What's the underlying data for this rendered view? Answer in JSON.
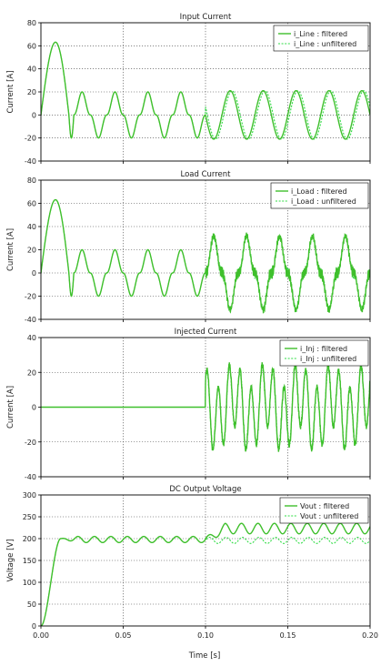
{
  "colors": {
    "filtered": "#3fbf2c",
    "unfiltered": "#2fdc44",
    "grid": "#444444",
    "axis": "#000000"
  },
  "chart_data": [
    {
      "type": "line",
      "title": "Input Current",
      "ylabel": "Current [A]",
      "xlabel": "",
      "xlim": [
        0,
        0.2
      ],
      "ylim": [
        -40,
        80
      ],
      "yticks": [
        "80",
        "60",
        "40",
        "20",
        "0",
        "-20",
        "-40"
      ],
      "xticks": [
        "0.00",
        "0.05",
        "0.10",
        "0.15",
        "0.20"
      ],
      "show_xtick_labels": false,
      "grid": true,
      "legend": "top-right",
      "series": [
        {
          "name": "i_Line : filtered",
          "style": "solid"
        },
        {
          "name": "i_Line : unfiltered",
          "style": "dotted"
        }
      ],
      "events": [
        {
          "t_start": 0.0,
          "t_end": 0.02,
          "peak": 63,
          "description": "inrush"
        },
        {
          "t_start": 0.02,
          "t_end": 0.1,
          "amplitude": 20,
          "frequency_hz": 50
        },
        {
          "t_start": 0.1,
          "t_end": 0.2,
          "amplitude": 21,
          "frequency_hz": 50
        }
      ]
    },
    {
      "type": "line",
      "title": "Load Current",
      "ylabel": "Current [A]",
      "xlabel": "",
      "xlim": [
        0,
        0.2
      ],
      "ylim": [
        -40,
        80
      ],
      "yticks": [
        "80",
        "60",
        "40",
        "20",
        "0",
        "-20",
        "-40"
      ],
      "xticks": [
        "0.00",
        "0.05",
        "0.10",
        "0.15",
        "0.20"
      ],
      "show_xtick_labels": false,
      "grid": true,
      "legend": "top-right",
      "series": [
        {
          "name": "i_Load : filtered",
          "style": "solid"
        },
        {
          "name": "i_Load : unfiltered",
          "style": "dotted"
        }
      ],
      "events": [
        {
          "t_start": 0.0,
          "t_end": 0.02,
          "peak": 63,
          "description": "inrush"
        },
        {
          "t_start": 0.02,
          "t_end": 0.1,
          "amplitude": 20,
          "frequency_hz": 50
        },
        {
          "t_start": 0.1,
          "t_end": 0.2,
          "amplitude": 32,
          "frequency_hz": 50
        }
      ]
    },
    {
      "type": "line",
      "title": "Injected Current",
      "ylabel": "Current [A]",
      "xlabel": "",
      "xlim": [
        0,
        0.2
      ],
      "ylim": [
        -40,
        40
      ],
      "yticks": [
        "40",
        "20",
        "0",
        "-20",
        "-40"
      ],
      "xticks": [
        "0.00",
        "0.05",
        "0.10",
        "0.15",
        "0.20"
      ],
      "show_xtick_labels": false,
      "grid": true,
      "legend": "top-right",
      "series": [
        {
          "name": "i_Inj : filtered",
          "style": "solid"
        },
        {
          "name": "i_Inj : unfiltered",
          "style": "dotted"
        }
      ],
      "events": [
        {
          "t_start": 0.0,
          "t_end": 0.1,
          "value": 0
        },
        {
          "t_start": 0.1,
          "t_end": 0.2,
          "amplitude": 22,
          "frequency_hz": 150
        }
      ]
    },
    {
      "type": "line",
      "title": "DC Output Voltage",
      "ylabel": "Voltage [V]",
      "xlabel": "Time [s]",
      "xlim": [
        0,
        0.2
      ],
      "ylim": [
        0,
        300
      ],
      "yticks": [
        "300",
        "250",
        "200",
        "150",
        "100",
        "50",
        "0"
      ],
      "xticks": [
        "0.00",
        "0.05",
        "0.10",
        "0.15",
        "0.20"
      ],
      "show_xtick_labels": true,
      "grid": true,
      "legend": "top-right",
      "series": [
        {
          "name": "Vout : filtered",
          "style": "solid"
        },
        {
          "name": "Vout : unfiltered",
          "style": "dotted"
        }
      ],
      "events": [
        {
          "t_start": 0.0,
          "t_end": 0.012,
          "from": 0,
          "to": 200,
          "description": "ramp"
        },
        {
          "t_start": 0.012,
          "t_end": 0.1,
          "mean": 198,
          "ripple": 7,
          "frequency_hz": 100
        },
        {
          "t_start": 0.1,
          "t_end": 0.2,
          "filtered_mean": 223,
          "filtered_ripple": 12,
          "unfiltered_mean": 196,
          "unfiltered_ripple": 7,
          "frequency_hz": 100
        }
      ]
    }
  ]
}
